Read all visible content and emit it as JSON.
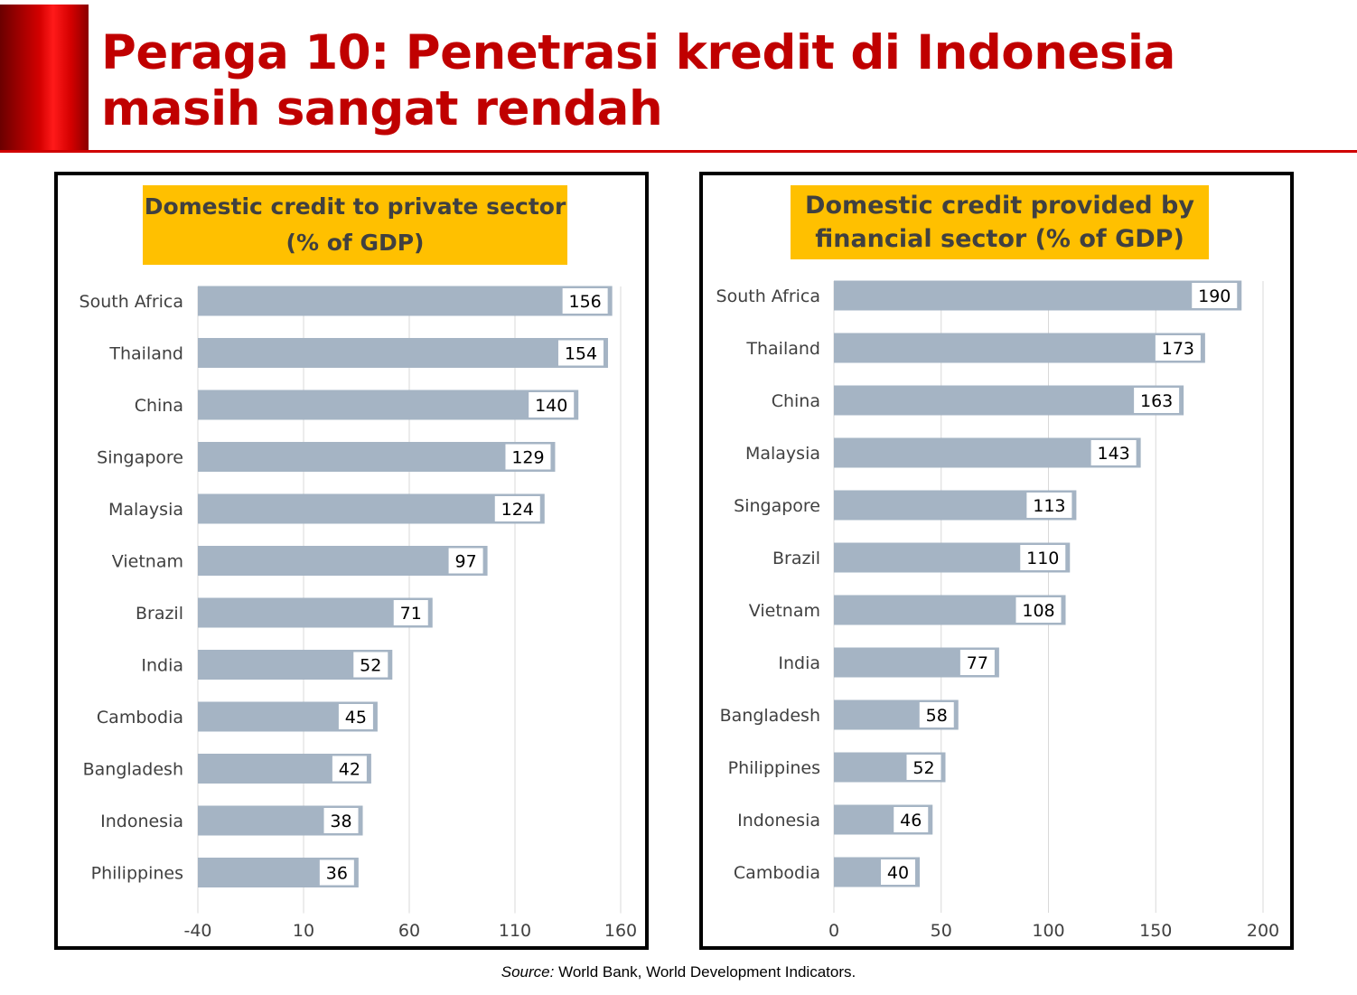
{
  "slide": {
    "title": "Peraga 10: Penetrasi kredit di Indonesia masih sangat rendah",
    "source_label": "Source:",
    "source_text": " World Bank, World Development Indicators."
  },
  "colors": {
    "title": "#c00000",
    "bar": "#a5b4c4",
    "heading_bg": "#ffc000",
    "gridline": "#d9d9d9"
  },
  "chart_data": [
    {
      "type": "bar",
      "orientation": "horizontal",
      "title": "Domestic credit  to private sector (% of GDP)",
      "categories": [
        "South Africa",
        "Thailand",
        "China",
        "Singapore",
        "Malaysia",
        "Vietnam",
        "Brazil",
        "India",
        "Cambodia",
        "Bangladesh",
        "Indonesia",
        "Philippines"
      ],
      "values": [
        156,
        154,
        140,
        129,
        124,
        97,
        71,
        52,
        45,
        42,
        38,
        36
      ],
      "xticks": [
        "-40",
        "10",
        "60",
        "110",
        "160"
      ],
      "xlim": [
        -40,
        160
      ],
      "grid": true
    },
    {
      "type": "bar",
      "orientation": "horizontal",
      "title": "Domestic credit provided by financial sector (% of GDP)",
      "categories": [
        "South Africa",
        "Thailand",
        "China",
        "Malaysia",
        "Singapore",
        "Brazil",
        "Vietnam",
        "India",
        "Bangladesh",
        "Philippines",
        "Indonesia",
        "Cambodia"
      ],
      "values": [
        190,
        173,
        163,
        143,
        113,
        110,
        108,
        77,
        58,
        52,
        46,
        40
      ],
      "xticks": [
        "0",
        "50",
        "100",
        "150",
        "200"
      ],
      "xlim": [
        0,
        200
      ],
      "grid": true
    }
  ]
}
